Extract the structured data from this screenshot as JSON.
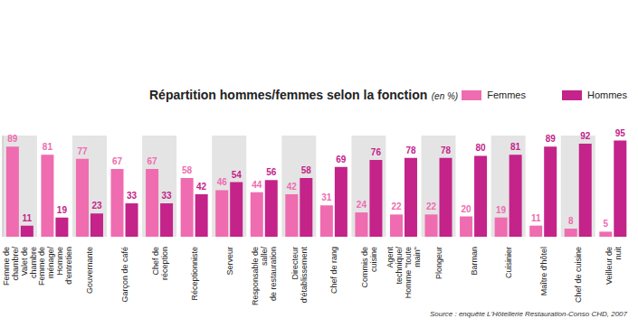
{
  "chart_data": {
    "type": "bar",
    "title": "Répartition hommes/femmes selon la fonction",
    "subtitle": "(en %)",
    "source": "Source : enquête L'Hôtellerie Restauration-Conso CHD, 2007",
    "categories": [
      "Femme de chambre/ Valet de chambre",
      "Femme de ménage/ Homme d'entretien",
      "Gouvernante",
      "Garçon de café",
      "Chef de réception",
      "Réceptionniste",
      "Serveur",
      "Responsable de salle/ de restauration",
      "Directeur d'établissement",
      "Chef de rang",
      "Commis de cuisine",
      "Agent technique/ Homme \"toute main\"",
      "Plongeur",
      "Barman",
      "Cuisinier",
      "Maître d'hôtel",
      "Chef de cuisine",
      "Veilleur de nuit"
    ],
    "series": [
      {
        "name": "Femmes",
        "color": "#ef6cb0",
        "values": [
          89,
          81,
          77,
          67,
          67,
          58,
          46,
          44,
          42,
          31,
          24,
          22,
          22,
          20,
          19,
          11,
          8,
          5
        ]
      },
      {
        "name": "Hommes",
        "color": "#c4238a",
        "values": [
          11,
          19,
          23,
          33,
          33,
          42,
          54,
          56,
          58,
          69,
          76,
          78,
          78,
          80,
          81,
          89,
          92,
          95
        ]
      }
    ],
    "ylim": [
      0,
      100
    ],
    "legend": "upper right",
    "data_labels": true,
    "tick_labels": false,
    "grid": false
  }
}
